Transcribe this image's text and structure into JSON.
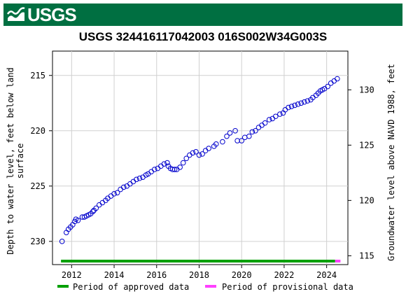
{
  "header": {
    "logo_text": "USGS",
    "brand_color": "#006f41"
  },
  "chart_data": {
    "type": "scatter",
    "title": "USGS 324416117042003 016S002W34G003S",
    "ylabel_left_line1": "Depth to water level, feet below land",
    "ylabel_left_line2": "surface",
    "ylabel_right": "Groundwater level above NAVD 1988, feet",
    "x_range": [
      2011.1,
      2025.0
    ],
    "y_left_range": [
      232.1,
      212.8
    ],
    "y_right_range": [
      114.2,
      133.5
    ],
    "x_ticks": [
      2012,
      2014,
      2016,
      2018,
      2020,
      2022,
      2024
    ],
    "x_tick_labels": [
      "2012",
      "2014",
      "2016",
      "2018",
      "2020",
      "2022",
      "2024"
    ],
    "y_left_ticks": [
      215,
      220,
      225,
      230
    ],
    "y_left_tick_labels": [
      "215",
      "220",
      "225",
      "230"
    ],
    "y_right_ticks": [
      130,
      125,
      120,
      115
    ],
    "y_right_tick_labels": [
      "130",
      "125",
      "120",
      "115"
    ],
    "grid": true,
    "marker_color": "#0000cc",
    "series": [
      {
        "name": "Depth to water level",
        "x": [
          2011.55,
          2011.75,
          2011.85,
          2011.95,
          2012.05,
          2012.15,
          2012.2,
          2012.3,
          2012.5,
          2012.6,
          2012.7,
          2012.8,
          2012.9,
          2013.0,
          2013.05,
          2013.15,
          2013.3,
          2013.45,
          2013.6,
          2013.7,
          2013.85,
          2014.0,
          2014.15,
          2014.3,
          2014.45,
          2014.6,
          2014.75,
          2014.9,
          2015.05,
          2015.2,
          2015.35,
          2015.5,
          2015.6,
          2015.75,
          2015.9,
          2016.05,
          2016.2,
          2016.35,
          2016.5,
          2016.55,
          2016.65,
          2016.75,
          2016.85,
          2016.95,
          2017.1,
          2017.25,
          2017.4,
          2017.55,
          2017.7,
          2017.85,
          2018.0,
          2018.15,
          2018.3,
          2018.45,
          2018.7,
          2018.8,
          2019.1,
          2019.3,
          2019.45,
          2019.7,
          2019.8,
          2020.0,
          2020.15,
          2020.35,
          2020.5,
          2020.65,
          2020.8,
          2020.95,
          2021.1,
          2021.3,
          2021.45,
          2021.6,
          2021.8,
          2021.95,
          2022.05,
          2022.2,
          2022.35,
          2022.5,
          2022.65,
          2022.8,
          2022.95,
          2023.1,
          2023.25,
          2023.35,
          2023.5,
          2023.6,
          2023.7,
          2023.8,
          2023.9,
          2024.05,
          2024.2,
          2024.35,
          2024.5
        ],
        "y": [
          230.0,
          229.2,
          228.9,
          228.7,
          228.5,
          228.2,
          228.0,
          228.1,
          227.8,
          227.8,
          227.7,
          227.6,
          227.5,
          227.3,
          227.2,
          227.0,
          226.7,
          226.5,
          226.3,
          226.1,
          225.9,
          225.7,
          225.6,
          225.3,
          225.1,
          225.0,
          224.8,
          224.6,
          224.4,
          224.3,
          224.2,
          224.0,
          223.9,
          223.7,
          223.5,
          223.4,
          223.2,
          223.0,
          222.9,
          223.2,
          223.4,
          223.5,
          223.5,
          223.5,
          223.3,
          222.9,
          222.5,
          222.2,
          222.0,
          221.9,
          222.2,
          222.1,
          221.8,
          221.6,
          221.4,
          221.2,
          221.0,
          220.5,
          220.2,
          220.0,
          220.9,
          220.9,
          220.6,
          220.5,
          220.1,
          220.0,
          219.7,
          219.5,
          219.3,
          219.0,
          218.9,
          218.7,
          218.5,
          218.4,
          218.1,
          217.9,
          217.8,
          217.7,
          217.6,
          217.5,
          217.4,
          217.3,
          217.2,
          217.0,
          216.8,
          216.6,
          216.4,
          216.3,
          216.2,
          216.0,
          215.7,
          215.5,
          215.3
        ]
      }
    ],
    "periods": [
      {
        "name": "Period of approved data",
        "start": 2011.5,
        "end": 2024.4,
        "color": "#00a000"
      },
      {
        "name": "Period of provisional data",
        "start": 2024.4,
        "end": 2024.65,
        "color": "#ff40ff"
      }
    ]
  }
}
